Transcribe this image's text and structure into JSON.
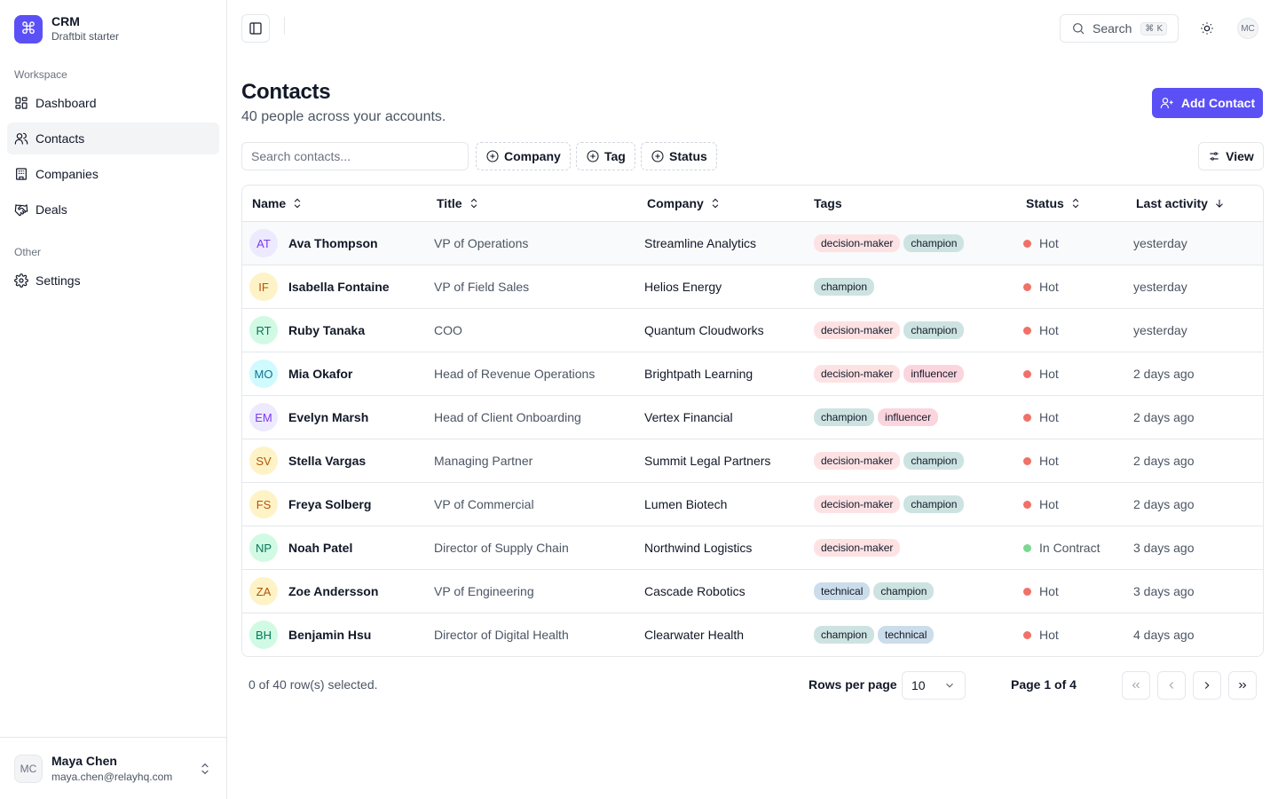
{
  "brand": {
    "name": "CRM",
    "subtitle": "Draftbit starter",
    "logo_icon": "command-icon",
    "color": "#5b50f6"
  },
  "sidebar": {
    "workspace_label": "Workspace",
    "items": [
      {
        "label": "Dashboard",
        "icon": "dashboard-icon"
      },
      {
        "label": "Contacts",
        "icon": "users-icon",
        "active": true
      },
      {
        "label": "Companies",
        "icon": "building-icon"
      },
      {
        "label": "Deals",
        "icon": "handshake-icon"
      }
    ],
    "other_label": "Other",
    "other_items": [
      {
        "label": "Settings",
        "icon": "gear-icon"
      }
    ],
    "user": {
      "initials": "MC",
      "name": "Maya Chen",
      "email": "maya.chen@relayhq.com"
    }
  },
  "header": {
    "search_label": "Search",
    "search_shortcut": "⌘ K",
    "avatar_initials": "MC"
  },
  "main": {
    "title": "Contacts",
    "subtitle": "40 people across your accounts.",
    "add_button": "Add Contact",
    "search_placeholder": "Search contacts...",
    "filters": [
      "Company",
      "Tag",
      "Status"
    ],
    "view_button": "View"
  },
  "table": {
    "columns": [
      "Name",
      "Title",
      "Company",
      "Tags",
      "Status",
      "Last activity"
    ],
    "rows": [
      {
        "initials": "AT",
        "name": "Ava Thompson",
        "title": "VP of Operations",
        "company": "Streamline Analytics",
        "tags": [
          "decision-maker",
          "champion"
        ],
        "status": "Hot",
        "last_activity": "yesterday"
      },
      {
        "initials": "IF",
        "name": "Isabella Fontaine",
        "title": "VP of Field Sales",
        "company": "Helios Energy",
        "tags": [
          "champion"
        ],
        "status": "Hot",
        "last_activity": "yesterday"
      },
      {
        "initials": "RT",
        "name": "Ruby Tanaka",
        "title": "COO",
        "company": "Quantum Cloudworks",
        "tags": [
          "decision-maker",
          "champion"
        ],
        "status": "Hot",
        "last_activity": "yesterday"
      },
      {
        "initials": "MO",
        "name": "Mia Okafor",
        "title": "Head of Revenue Operations",
        "company": "Brightpath Learning",
        "tags": [
          "decision-maker",
          "influencer"
        ],
        "status": "Hot",
        "last_activity": "2 days ago"
      },
      {
        "initials": "EM",
        "name": "Evelyn Marsh",
        "title": "Head of Client Onboarding",
        "company": "Vertex Financial",
        "tags": [
          "champion",
          "influencer"
        ],
        "status": "Hot",
        "last_activity": "2 days ago"
      },
      {
        "initials": "SV",
        "name": "Stella Vargas",
        "title": "Managing Partner",
        "company": "Summit Legal Partners",
        "tags": [
          "decision-maker",
          "champion"
        ],
        "status": "Hot",
        "last_activity": "2 days ago"
      },
      {
        "initials": "FS",
        "name": "Freya Solberg",
        "title": "VP of Commercial",
        "company": "Lumen Biotech",
        "tags": [
          "decision-maker",
          "champion"
        ],
        "status": "Hot",
        "last_activity": "2 days ago"
      },
      {
        "initials": "NP",
        "name": "Noah Patel",
        "title": "Director of Supply Chain",
        "company": "Northwind Logistics",
        "tags": [
          "decision-maker"
        ],
        "status": "In Contract",
        "last_activity": "3 days ago"
      },
      {
        "initials": "ZA",
        "name": "Zoe Andersson",
        "title": "VP of Engineering",
        "company": "Cascade Robotics",
        "tags": [
          "technical",
          "champion"
        ],
        "status": "Hot",
        "last_activity": "3 days ago"
      },
      {
        "initials": "BH",
        "name": "Benjamin Hsu",
        "title": "Director of Digital Health",
        "company": "Clearwater Health",
        "tags": [
          "champion",
          "technical"
        ],
        "status": "Hot",
        "last_activity": "4 days ago"
      }
    ]
  },
  "colors": {
    "tags": {
      "decision-maker": "#fde2e4",
      "champion": "#cde3e1",
      "influencer": "#fbd5de",
      "technical": "#cbdcea"
    },
    "status": {
      "Hot": "#f07167",
      "In Contract": "#7bd88f"
    },
    "avatars": [
      {
        "bg": "#ede9fe",
        "fg": "#7c3aed"
      },
      {
        "bg": "#fef3c7",
        "fg": "#b45309"
      },
      {
        "bg": "#d1fae5",
        "fg": "#047857"
      },
      {
        "bg": "#cffafe",
        "fg": "#0e7490"
      },
      {
        "bg": "#ede9fe",
        "fg": "#7c3aed"
      },
      {
        "bg": "#fef3c7",
        "fg": "#b45309"
      },
      {
        "bg": "#fef3c7",
        "fg": "#b45309"
      },
      {
        "bg": "#d1fae5",
        "fg": "#047857"
      },
      {
        "bg": "#fef3c7",
        "fg": "#b45309"
      },
      {
        "bg": "#d1fae5",
        "fg": "#047857"
      }
    ]
  },
  "footer": {
    "selection_text": "0 of 40 row(s) selected.",
    "rows_per_page_label": "Rows per page",
    "rows_per_page_value": "10",
    "page_info": "Page 1 of 4"
  }
}
